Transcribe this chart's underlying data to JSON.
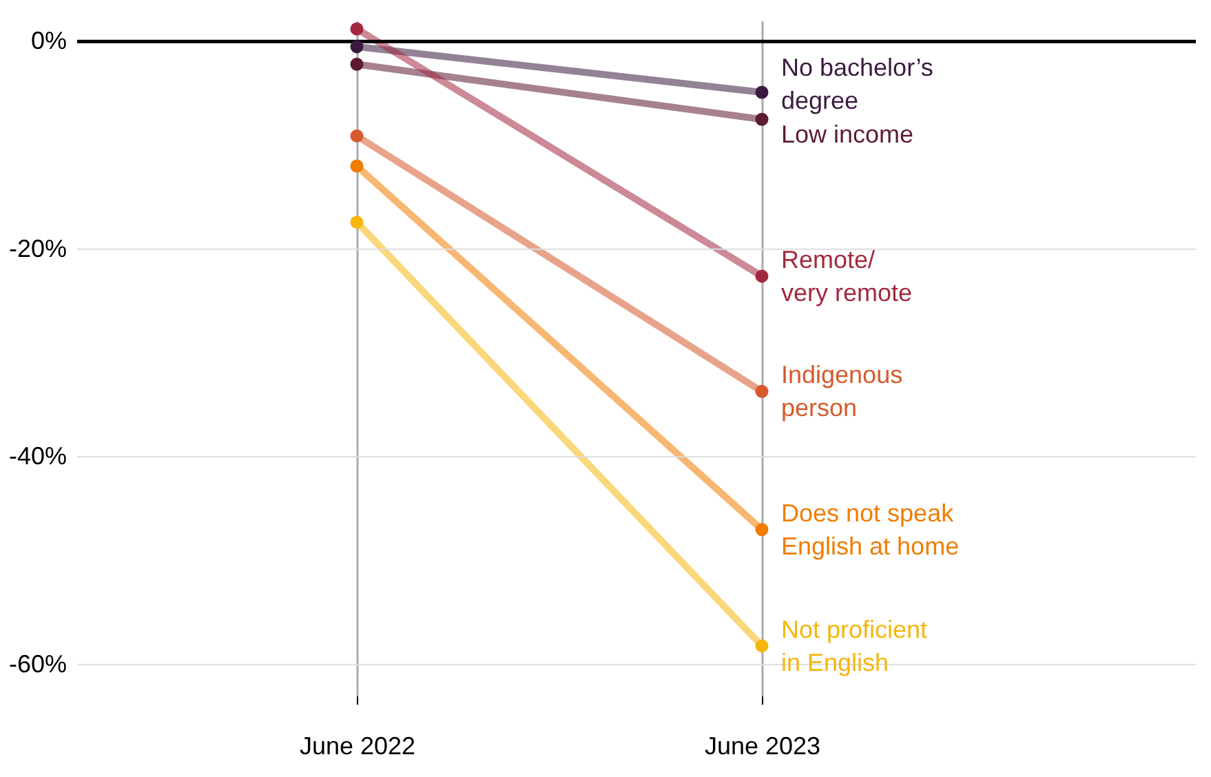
{
  "chart_data": {
    "type": "line",
    "categories": [
      "June 2022",
      "June 2023"
    ],
    "series": [
      {
        "name": "No bachelor’s\ndegree",
        "color": "#3b1a40",
        "values": [
          -0.5,
          -4.9
        ]
      },
      {
        "name": "Low income",
        "color": "#5c1a33",
        "values": [
          -2.2,
          -7.5
        ]
      },
      {
        "name": "Remote/\nvery remote",
        "color": "#a3283f",
        "values": [
          1.2,
          -22.6
        ]
      },
      {
        "name": "Indigenous\nperson",
        "color": "#d65a2c",
        "values": [
          -9.1,
          -33.7
        ]
      },
      {
        "name": "Does not speak\nEnglish at home",
        "color": "#f07c00",
        "values": [
          -12,
          -47
        ]
      },
      {
        "name": "Not proficient\nin English",
        "color": "#f5b60d",
        "values": [
          -17.4,
          -58.2
        ]
      }
    ],
    "ylim": [
      -63,
      2
    ],
    "yticks": [
      {
        "value": 0,
        "label": "0%"
      },
      {
        "value": -20,
        "label": "-20%"
      },
      {
        "value": -40,
        "label": "-40%"
      },
      {
        "value": -60,
        "label": "-60%"
      }
    ],
    "ref_lines": [
      {
        "axis": "y",
        "value": 0,
        "color": "#000000"
      }
    ],
    "grid": true,
    "marker": "circle",
    "line_style": "solid"
  }
}
